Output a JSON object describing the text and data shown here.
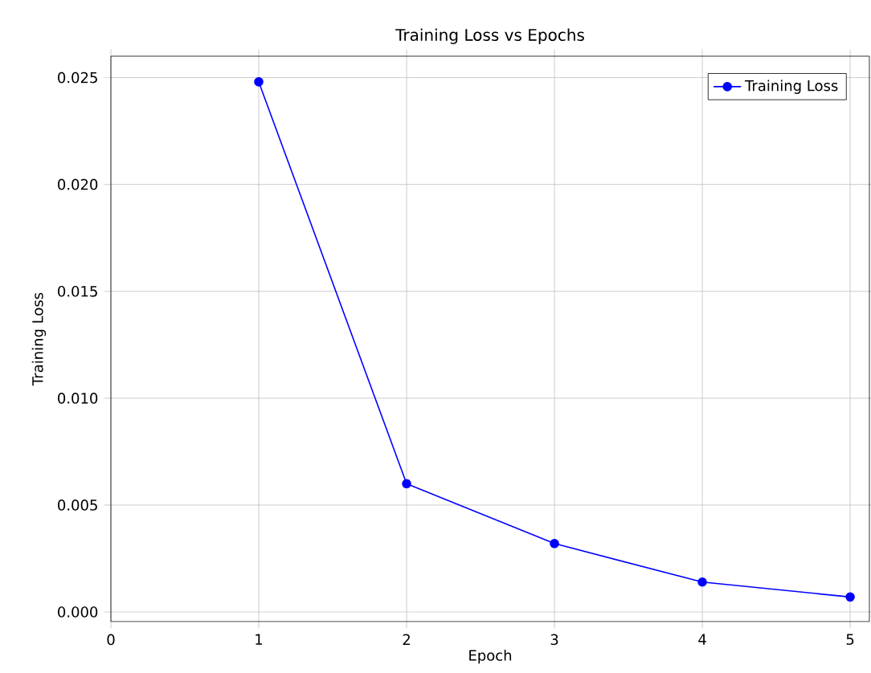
{
  "chart_data": {
    "type": "line",
    "title": "Training Loss vs Epochs",
    "xlabel": "Epoch",
    "ylabel": "Training Loss",
    "x": [
      1,
      2,
      3,
      4,
      5
    ],
    "series": [
      {
        "name": "Training Loss",
        "color": "#0000ff",
        "values": [
          0.0248,
          0.006,
          0.0032,
          0.0014,
          0.0007
        ]
      }
    ],
    "xlim": [
      0,
      5.13
    ],
    "ylim": [
      -0.00045,
      0.026
    ],
    "xticks": [
      0,
      1,
      2,
      3,
      4,
      5
    ],
    "yticks": [
      {
        "value": 0,
        "label": "0.000"
      },
      {
        "value": 0.005,
        "label": "0.005"
      },
      {
        "value": 0.01,
        "label": "0.010"
      },
      {
        "value": 0.015,
        "label": "0.015"
      },
      {
        "value": 0.02,
        "label": "0.020"
      },
      {
        "value": 0.025,
        "label": "0.025"
      }
    ],
    "grid": true,
    "legend": "top right",
    "marker": "circle",
    "line_style": "solid"
  }
}
